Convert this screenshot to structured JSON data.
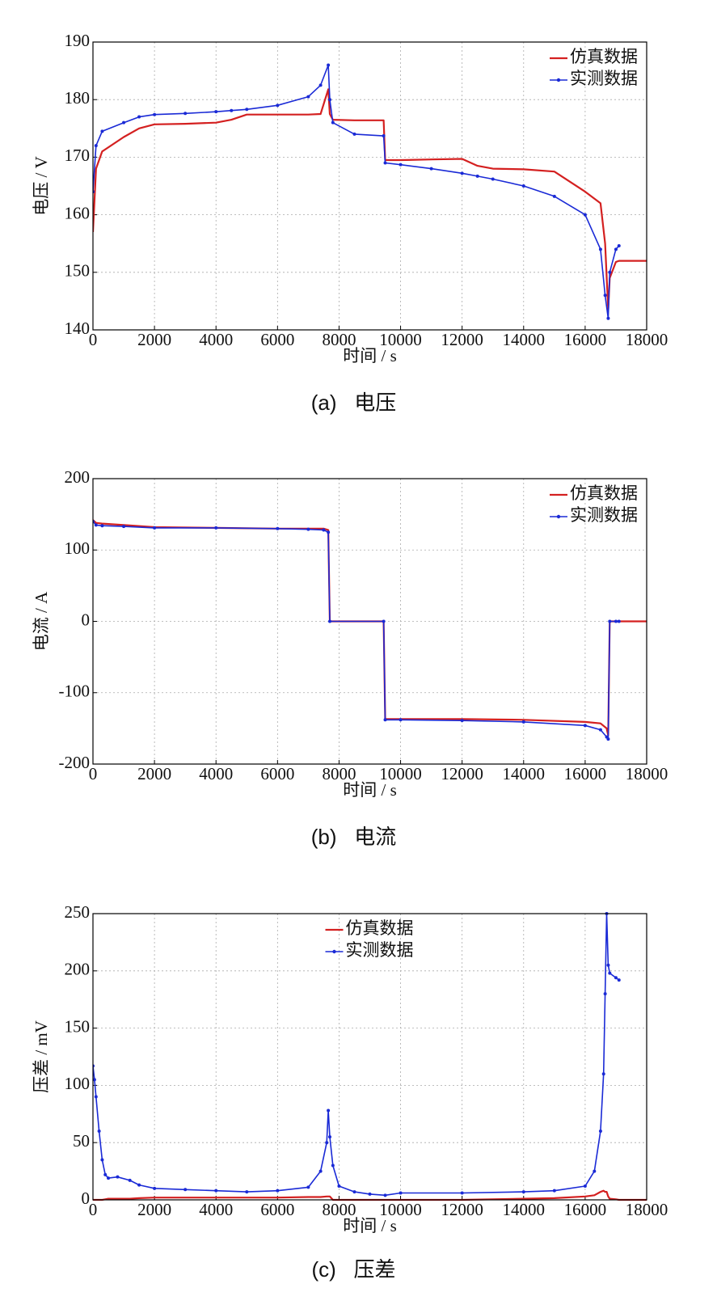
{
  "chart_data": [
    {
      "type": "line",
      "caption": "(a)   电压",
      "xlabel": "时间 / s",
      "ylabel": "电压 / V",
      "xlim": [
        0,
        18000
      ],
      "xticks": [
        0,
        2000,
        4000,
        6000,
        8000,
        10000,
        12000,
        14000,
        16000,
        18000
      ],
      "ylim": [
        140,
        190
      ],
      "yticks": [
        140,
        150,
        160,
        170,
        180,
        190
      ],
      "grid": true,
      "legend": "upper right",
      "x": [
        0,
        100,
        300,
        1000,
        1500,
        2000,
        3000,
        4000,
        4500,
        5000,
        6000,
        7000,
        7400,
        7650,
        7700,
        7800,
        8500,
        9450,
        9500,
        10000,
        11000,
        12000,
        12500,
        13000,
        14000,
        15000,
        16000,
        16500,
        16650,
        16750,
        16800,
        17000,
        17100,
        18000
      ],
      "series": [
        {
          "name": "仿真数据",
          "color": "#d42020",
          "marker": false,
          "values": [
            157,
            168,
            171,
            173.5,
            175,
            175.7,
            175.8,
            176,
            176.5,
            177.4,
            177.4,
            177.4,
            177.5,
            181.8,
            177.5,
            176.5,
            176.4,
            176.4,
            169.5,
            169.5,
            169.6,
            169.7,
            168.5,
            168,
            167.9,
            167.5,
            164,
            162,
            155,
            143.5,
            149,
            151.8,
            152,
            152
          ]
        },
        {
          "name": "实测数据",
          "color": "#1a2ad6",
          "marker": true,
          "values": [
            164,
            172,
            174.5,
            176,
            177,
            177.4,
            177.6,
            177.9,
            178.1,
            178.3,
            179,
            180.5,
            182.5,
            186,
            180,
            176,
            174,
            173.7,
            169,
            168.7,
            168,
            167.2,
            166.7,
            166.2,
            165,
            163.2,
            160,
            154,
            146,
            142,
            150,
            154,
            154.6,
            null
          ]
        }
      ]
    },
    {
      "type": "line",
      "caption": "(b)   电流",
      "xlabel": "时间 / s",
      "ylabel": "电流 / A",
      "xlim": [
        0,
        18000
      ],
      "xticks": [
        0,
        2000,
        4000,
        6000,
        8000,
        10000,
        12000,
        14000,
        16000,
        18000
      ],
      "ylim": [
        -200,
        200
      ],
      "yticks": [
        -200,
        -100,
        0,
        100,
        200
      ],
      "grid": true,
      "legend": "upper right",
      "x": [
        0,
        100,
        300,
        1000,
        2000,
        4000,
        6000,
        7000,
        7500,
        7650,
        7700,
        9450,
        9500,
        10000,
        12000,
        14000,
        16000,
        16500,
        16700,
        16750,
        16800,
        17000,
        17100,
        18000
      ],
      "series": [
        {
          "name": "仿真数据",
          "color": "#d42020",
          "marker": false,
          "values": [
            142,
            138,
            137,
            135,
            132,
            131,
            130,
            130,
            130,
            128,
            0,
            0,
            -137,
            -137,
            -137,
            -138,
            -141,
            -143,
            -150,
            -160,
            0,
            0,
            0,
            0
          ]
        },
        {
          "name": "实测数据",
          "color": "#1a2ad6",
          "marker": true,
          "values": [
            140,
            135,
            134,
            133,
            131,
            131,
            130,
            129,
            128,
            125,
            0,
            0,
            -138,
            -138,
            -139,
            -141,
            -146,
            -152,
            -162,
            -165,
            0,
            0,
            0,
            null
          ]
        }
      ]
    },
    {
      "type": "line",
      "caption": "(c)   压差",
      "xlabel": "时间 / s",
      "ylabel": "压差 / mV",
      "xlim": [
        0,
        18000
      ],
      "xticks": [
        0,
        2000,
        4000,
        6000,
        8000,
        10000,
        12000,
        14000,
        16000,
        18000
      ],
      "ylim": [
        0,
        250
      ],
      "yticks": [
        0,
        50,
        100,
        150,
        200,
        250
      ],
      "grid": true,
      "legend": "upper center",
      "x": [
        0,
        50,
        100,
        200,
        300,
        400,
        500,
        800,
        1200,
        1500,
        2000,
        3000,
        4000,
        5000,
        6000,
        7000,
        7400,
        7600,
        7650,
        7700,
        7800,
        8000,
        8500,
        9000,
        9500,
        10000,
        12000,
        14000,
        15000,
        16000,
        16300,
        16500,
        16600,
        16650,
        16700,
        16750,
        16800,
        17000,
        17100,
        18000
      ],
      "series": [
        {
          "name": "仿真数据",
          "color": "#d42020",
          "marker": false,
          "values": [
            0,
            0,
            0,
            0,
            0,
            0.5,
            1,
            1,
            1,
            1.5,
            2,
            2,
            2,
            2,
            2,
            2.5,
            2.5,
            3,
            3,
            3,
            0,
            0,
            0,
            0,
            0,
            0,
            0,
            1,
            1.5,
            3,
            4,
            7,
            8,
            7,
            7,
            3,
            1,
            0.5,
            0,
            0
          ]
        },
        {
          "name": "实测数据",
          "color": "#1a2ad6",
          "marker": true,
          "values": [
            117,
            105,
            90,
            60,
            35,
            22,
            19,
            20,
            17,
            13,
            10,
            9,
            8,
            7,
            8,
            11,
            25,
            50,
            78,
            55,
            30,
            12,
            7,
            5,
            4,
            6,
            6,
            7,
            8,
            12,
            25,
            60,
            110,
            180,
            250,
            205,
            198,
            194,
            192,
            null
          ]
        }
      ]
    }
  ]
}
